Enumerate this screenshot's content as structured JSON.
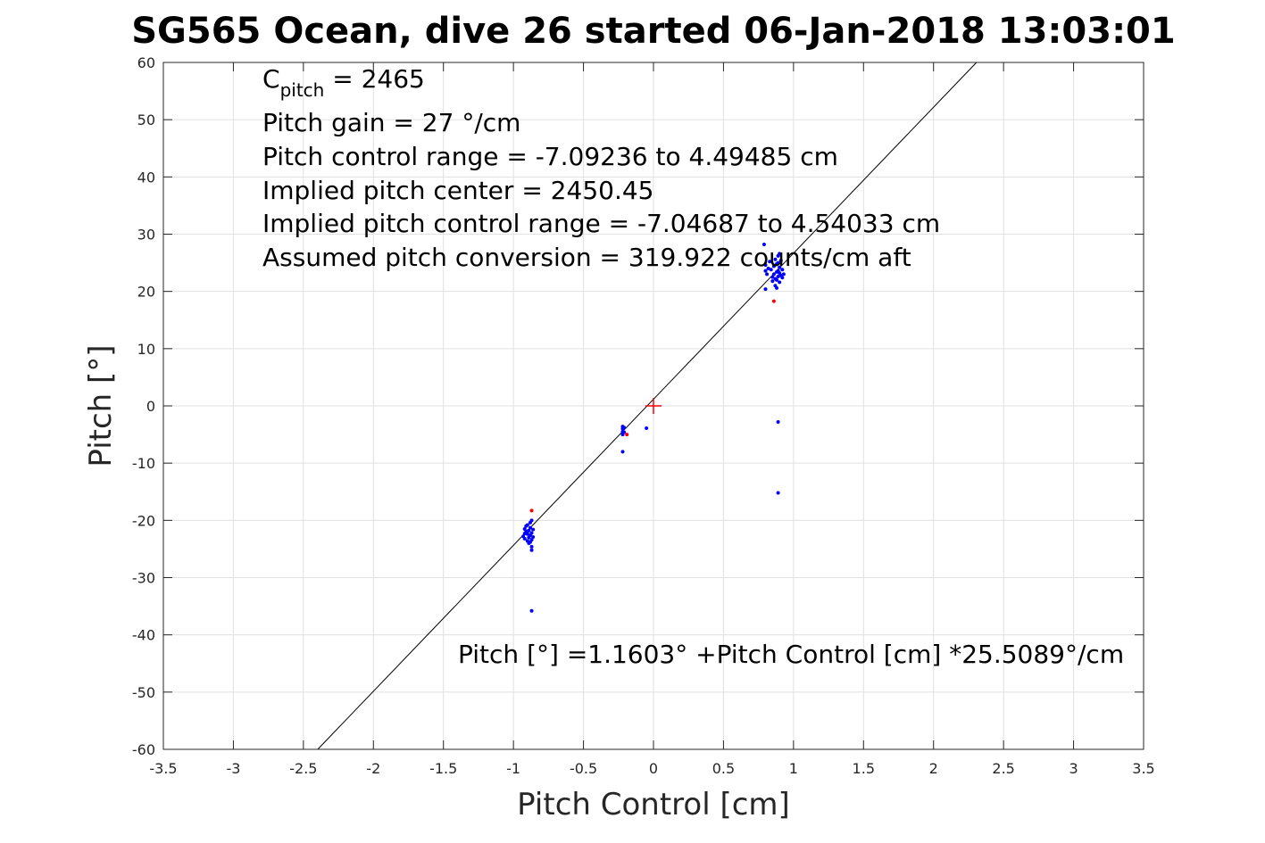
{
  "chart_data": {
    "type": "scatter",
    "title": "SG565 Ocean, dive 26 started 06-Jan-2018 13:03:01",
    "xlabel": "Pitch Control [cm]",
    "ylabel": "Pitch [°]",
    "xlim": [
      -3.5,
      3.5
    ],
    "ylim": [
      -60,
      60
    ],
    "grid": true,
    "x_ticks": [
      -3.5,
      -3,
      -2.5,
      -2,
      -1.5,
      -1,
      -0.5,
      0,
      0.5,
      1,
      1.5,
      2,
      2.5,
      3,
      3.5
    ],
    "y_ticks": [
      -60,
      -50,
      -40,
      -30,
      -20,
      -10,
      0,
      10,
      20,
      30,
      40,
      50,
      60
    ],
    "x_tick_labels": [
      "-3.5",
      "-3",
      "-2.5",
      "-2",
      "-1.5",
      "-1",
      "-0.5",
      "0",
      "0.5",
      "1",
      "1.5",
      "2",
      "2.5",
      "3",
      "3.5"
    ],
    "y_tick_labels": [
      "-60",
      "-50",
      "-40",
      "-30",
      "-20",
      "-10",
      "0",
      "10",
      "20",
      "30",
      "40",
      "50",
      "60"
    ],
    "annotations": {
      "cpitch_main": "C",
      "cpitch_sub": "pitch",
      "cpitch_rest": " = 2465",
      "lines": [
        "Pitch gain = 27 °/cm",
        "Pitch control range = -7.09236 to 4.49485 cm",
        "Implied pitch center = 2450.45",
        "Implied pitch control range = -7.04687 to 4.54033 cm",
        "Assumed pitch conversion = 319.922 counts/cm aft"
      ],
      "fit_equation": "Pitch [°] =1.1603° +Pitch Control [cm] *25.5089°/cm"
    },
    "fit_line": {
      "intercept": 1.1603,
      "slope": 25.5089,
      "color": "#000000"
    },
    "origin_marker": {
      "x": 0,
      "y": 0,
      "color": "#ff0000"
    },
    "series": [
      {
        "color": "#0000ff",
        "points": [
          [
            -0.93,
            -22.8
          ],
          [
            -0.92,
            -21.5
          ],
          [
            -0.92,
            -23.2
          ],
          [
            -0.91,
            -22.0
          ],
          [
            -0.91,
            -21.0
          ],
          [
            -0.9,
            -23.6
          ],
          [
            -0.9,
            -22.4
          ],
          [
            -0.9,
            -20.8
          ],
          [
            -0.89,
            -21.8
          ],
          [
            -0.89,
            -23.0
          ],
          [
            -0.89,
            -24.0
          ],
          [
            -0.88,
            -22.6
          ],
          [
            -0.88,
            -21.3
          ],
          [
            -0.88,
            -20.4
          ],
          [
            -0.87,
            -24.6
          ],
          [
            -0.87,
            -22.2
          ],
          [
            -0.87,
            -23.4
          ],
          [
            -0.87,
            -25.2
          ],
          [
            -0.87,
            -20.0
          ],
          [
            -0.86,
            -21.6
          ],
          [
            -0.86,
            -22.9
          ],
          [
            -0.92,
            -22.3
          ],
          [
            -0.9,
            -21.9
          ],
          [
            -0.88,
            -23.8
          ],
          [
            -0.87,
            -35.8
          ],
          [
            -0.22,
            -3.6
          ],
          [
            -0.22,
            -4.0
          ],
          [
            -0.22,
            -4.5
          ],
          [
            -0.22,
            -5.0
          ],
          [
            -0.21,
            -3.8
          ],
          [
            -0.21,
            -4.6
          ],
          [
            -0.22,
            -8.0
          ],
          [
            -0.05,
            -3.9
          ],
          [
            0.79,
            28.2
          ],
          [
            0.8,
            24.6
          ],
          [
            0.8,
            23.6
          ],
          [
            0.8,
            20.4
          ],
          [
            0.81,
            23.0
          ],
          [
            0.82,
            24.0
          ],
          [
            0.83,
            25.2
          ],
          [
            0.84,
            23.8
          ],
          [
            0.85,
            22.5
          ],
          [
            0.85,
            21.8
          ],
          [
            0.86,
            24.4
          ],
          [
            0.86,
            23.0
          ],
          [
            0.87,
            25.6
          ],
          [
            0.87,
            22.2
          ],
          [
            0.87,
            21.0
          ],
          [
            0.88,
            24.8
          ],
          [
            0.88,
            23.4
          ],
          [
            0.88,
            22.0
          ],
          [
            0.89,
            26.2
          ],
          [
            0.89,
            25.0
          ],
          [
            0.89,
            23.6
          ],
          [
            0.89,
            22.6
          ],
          [
            0.9,
            24.2
          ],
          [
            0.9,
            23.2
          ],
          [
            0.9,
            21.6
          ],
          [
            0.91,
            25.4
          ],
          [
            0.91,
            22.8
          ],
          [
            0.92,
            23.8
          ],
          [
            0.92,
            22.4
          ],
          [
            0.93,
            23.0
          ],
          [
            0.88,
            20.6
          ],
          [
            0.9,
            26.6
          ],
          [
            0.89,
            -2.8
          ],
          [
            0.89,
            -15.2
          ]
        ]
      },
      {
        "color": "#ff0000",
        "points": [
          [
            -0.87,
            -18.3
          ],
          [
            -0.19,
            -5.0
          ],
          [
            0.86,
            18.3
          ]
        ]
      }
    ]
  }
}
